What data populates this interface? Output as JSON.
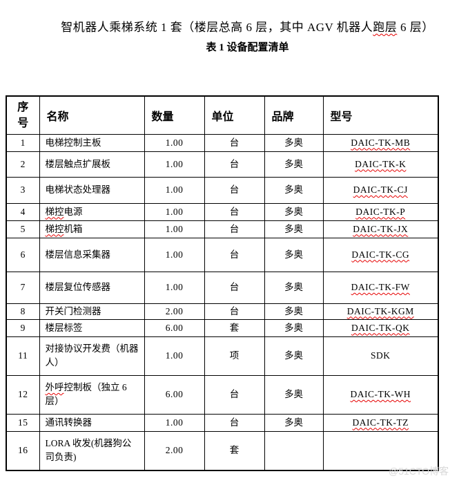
{
  "document": {
    "title": {
      "before": "智机器人乘梯系统 1 套（楼层总高 6 层，其中 AGV 机器人",
      "marked": "跑层",
      "after": " 6 层）"
    },
    "table_caption": "表 1 设备配置清单",
    "watermark": "@51CTO博客"
  },
  "table": {
    "headers": {
      "no": "序号",
      "name": "名称",
      "qty": "数量",
      "unit": "单位",
      "brand": "品牌",
      "model": "型号"
    },
    "rows": [
      {
        "no": "1",
        "name_mark": "",
        "name": "电梯控制主板",
        "qty": "1.00",
        "unit": "台",
        "brand": "多奥",
        "model": "DAIC-TK-MB",
        "model_squiggle": true
      },
      {
        "no": "2",
        "name_mark": "",
        "name": "楼层触点扩展板",
        "qty": "1.00",
        "unit": "台",
        "brand": "多奥",
        "model": "DAIC-TK-K",
        "model_squiggle": true
      },
      {
        "no": "3",
        "name_mark": "",
        "name": "电梯状态处理器",
        "qty": "1.00",
        "unit": "台",
        "brand": "多奥",
        "model": "DAIC-TK-CJ",
        "model_squiggle": true
      },
      {
        "no": "4",
        "name_mark": "梯控",
        "name": "电源",
        "qty": "1.00",
        "unit": "台",
        "brand": "多奥",
        "model": "DAIC-TK-P",
        "model_squiggle": true
      },
      {
        "no": "5",
        "name_mark": "梯控",
        "name": "机箱",
        "qty": "1.00",
        "unit": "台",
        "brand": "多奥",
        "model": "DAIC-TK-JX",
        "model_squiggle": true
      },
      {
        "no": "6",
        "name_mark": "",
        "name": "楼层信息采集器",
        "qty": "1.00",
        "unit": "台",
        "brand": "多奥",
        "model": "DAIC-TK-CG",
        "model_squiggle": true
      },
      {
        "no": "7",
        "name_mark": "",
        "name": "楼层复位传感器",
        "qty": "1.00",
        "unit": "台",
        "brand": "多奥",
        "model": "DAIC-TK-FW",
        "model_squiggle": true
      },
      {
        "no": "8",
        "name_mark": "",
        "name": "开关门检测器",
        "qty": "2.00",
        "unit": "台",
        "brand": "多奥",
        "model": "DAIC-TK-KGM",
        "model_squiggle": true
      },
      {
        "no": "9",
        "name_mark": "",
        "name": "楼层标签",
        "qty": "6.00",
        "unit": "套",
        "brand": "多奥",
        "model": "DAIC-TK-QK",
        "model_squiggle": true
      },
      {
        "no": "11",
        "name_mark": "",
        "name": "对接协议开发费（机器人）",
        "qty": "1.00",
        "unit": "项",
        "brand": "多奥",
        "model": "SDK",
        "model_squiggle": false
      },
      {
        "no": "12",
        "name_mark": "外呼",
        "name": "控制板（独立 6 层）",
        "qty": "6.00",
        "unit": "台",
        "brand": "多奥",
        "model": "DAIC-TK-WH",
        "model_squiggle": true
      },
      {
        "no": "15",
        "name_mark": "",
        "name": "通讯转换器",
        "qty": "1.00",
        "unit": "台",
        "brand": "多奥",
        "model": "DAIC-TK-TZ",
        "model_squiggle": true
      },
      {
        "no": "16",
        "name_mark": "",
        "name": "LORA 收发(机器狗公司负责)",
        "qty": "2.00",
        "unit": "套",
        "brand": "",
        "model": "",
        "model_squiggle": false
      }
    ]
  }
}
